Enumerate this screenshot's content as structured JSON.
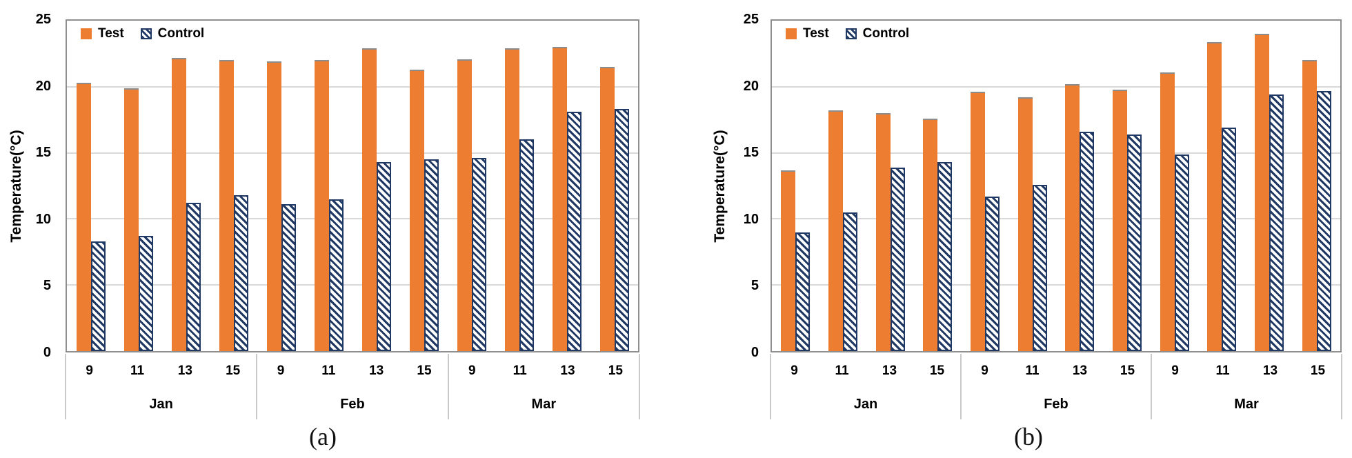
{
  "chart_data": [
    {
      "id": "a",
      "type": "bar",
      "caption": "(a)",
      "ylabel": "Temperature(°C)",
      "ylim": [
        0,
        25
      ],
      "yticks": [
        25,
        20,
        15,
        10,
        5,
        0
      ],
      "grid": true,
      "legend_position": "top-left inside plot",
      "months": [
        "Jan",
        "Feb",
        "Mar"
      ],
      "categories": [
        "9",
        "11",
        "13",
        "15",
        "9",
        "11",
        "13",
        "15",
        "9",
        "11",
        "13",
        "15"
      ],
      "series": [
        {
          "name": "Test",
          "pattern": "solid",
          "color": "#ED7D31",
          "values": [
            20.3,
            19.9,
            22.2,
            22.0,
            21.9,
            22.0,
            22.9,
            21.3,
            22.1,
            22.9,
            23.0,
            21.5
          ]
        },
        {
          "name": "Control",
          "pattern": "diagonal-hatch",
          "color": "#1F3864",
          "values": [
            8.3,
            8.7,
            11.2,
            11.8,
            11.1,
            11.5,
            14.3,
            14.5,
            14.6,
            16.0,
            18.1,
            18.3
          ]
        }
      ]
    },
    {
      "id": "b",
      "type": "bar",
      "caption": "(b)",
      "ylabel": "Temperature(°C)",
      "ylim": [
        0,
        25
      ],
      "yticks": [
        25,
        20,
        15,
        10,
        5,
        0
      ],
      "grid": true,
      "legend_position": "top-left inside plot",
      "months": [
        "Jan",
        "Feb",
        "Mar"
      ],
      "categories": [
        "9",
        "11",
        "13",
        "15",
        "9",
        "11",
        "13",
        "15",
        "9",
        "11",
        "13",
        "15"
      ],
      "series": [
        {
          "name": "Test",
          "pattern": "solid",
          "color": "#ED7D31",
          "values": [
            13.7,
            18.2,
            18.0,
            17.6,
            19.6,
            19.2,
            20.2,
            19.8,
            21.1,
            23.4,
            24.0,
            22.0
          ]
        },
        {
          "name": "Control",
          "pattern": "diagonal-hatch",
          "color": "#1F3864",
          "values": [
            9.0,
            10.5,
            13.9,
            14.3,
            11.7,
            12.6,
            16.6,
            16.4,
            14.9,
            16.9,
            19.4,
            19.7
          ]
        }
      ]
    }
  ],
  "colors": {
    "test": "#ED7D31",
    "control": "#1F3864",
    "gridline": "#D9D9D9",
    "plot_border": "#8F8F8F",
    "axis_table_line": "#C9C9C9",
    "text": "#000000"
  }
}
